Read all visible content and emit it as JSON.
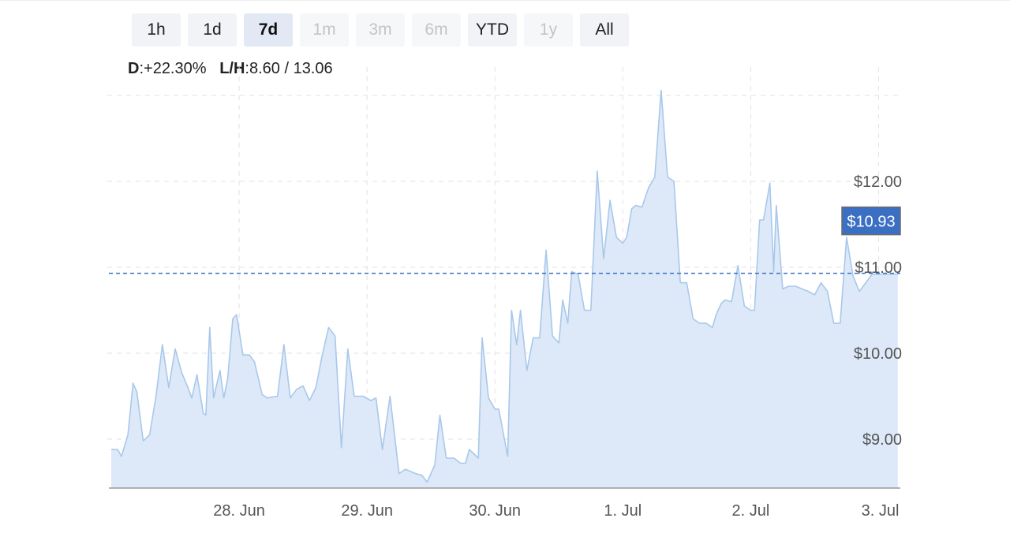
{
  "range_selector": {
    "buttons": [
      {
        "label": "1h",
        "state": "normal"
      },
      {
        "label": "1d",
        "state": "normal"
      },
      {
        "label": "7d",
        "state": "active"
      },
      {
        "label": "1m",
        "state": "disabled"
      },
      {
        "label": "3m",
        "state": "disabled"
      },
      {
        "label": "6m",
        "state": "disabled"
      },
      {
        "label": "YTD",
        "state": "normal"
      },
      {
        "label": "1y",
        "state": "disabled"
      },
      {
        "label": "All",
        "state": "normal"
      }
    ]
  },
  "stats": {
    "d_label": "D",
    "d_value": ":+22.30%",
    "lh_label": "L/H",
    "lh_value": ":8.60 / 13.06"
  },
  "colors": {
    "line": "#a9c8ea",
    "fill": "#dde9f8",
    "current_price": "#3a6fc4",
    "gridline": "#e2e2e2",
    "axis_text": "#555555"
  },
  "chart_data": {
    "type": "area",
    "x_unit": "days since 27 Jun 00:00",
    "xlim": [
      0,
      6.17
    ],
    "ylim": [
      8.62,
      13.2
    ],
    "y_ticks": [
      9,
      10,
      11,
      12
    ],
    "y_tick_labels": [
      "$9.00",
      "$10.00",
      "$11.00",
      "$12.00"
    ],
    "x_ticks": [
      1,
      2,
      3,
      4,
      5,
      6
    ],
    "x_tick_labels": [
      "28. Jun",
      "29. Jun",
      "30. Jun",
      "1. Jul",
      "2. Jul",
      "3. Jul"
    ],
    "grid": true,
    "current_price": 10.93,
    "current_price_label": "$10.93",
    "series": [
      {
        "x": [
          0.0,
          0.05,
          0.08,
          0.13,
          0.17,
          0.2,
          0.25,
          0.3,
          0.35,
          0.4,
          0.45,
          0.5,
          0.55,
          0.6,
          0.63,
          0.67,
          0.72,
          0.74,
          0.77,
          0.8,
          0.85,
          0.88,
          0.91,
          0.95,
          0.98,
          1.03,
          1.08,
          1.12,
          1.18,
          1.22,
          1.3,
          1.35,
          1.4,
          1.45,
          1.5,
          1.55,
          1.6,
          1.65,
          1.7,
          1.75,
          1.8,
          1.85,
          1.9,
          1.97,
          2.03,
          2.07,
          2.12,
          2.18,
          2.25,
          2.3,
          2.38,
          2.43,
          2.47,
          2.53,
          2.57,
          2.62,
          2.68,
          2.73,
          2.77,
          2.8,
          2.87,
          2.9,
          2.95,
          3.0,
          3.03,
          3.1,
          3.13,
          3.17,
          3.2,
          3.25,
          3.3,
          3.35,
          3.4,
          3.45,
          3.5,
          3.53,
          3.57,
          3.6,
          3.65,
          3.7,
          3.75,
          3.8,
          3.85,
          3.9,
          3.95,
          4.0,
          4.03,
          4.07,
          4.1,
          4.15,
          4.2,
          4.25,
          4.3,
          4.35,
          4.4,
          4.45,
          4.5,
          4.55,
          4.6,
          4.65,
          4.7,
          4.73,
          4.77,
          4.8,
          4.85,
          4.9,
          4.95,
          5.0,
          5.03,
          5.07,
          5.1,
          5.15,
          5.18,
          5.2,
          5.25,
          5.3,
          5.35,
          5.4,
          5.45,
          5.5,
          5.55,
          5.6,
          5.65,
          5.7,
          5.75,
          5.8,
          5.85,
          5.9,
          5.95,
          6.0,
          6.05,
          6.1,
          6.15
        ],
        "y": [
          8.88,
          8.88,
          8.8,
          9.05,
          9.65,
          9.55,
          8.98,
          9.05,
          9.5,
          10.1,
          9.6,
          10.05,
          9.78,
          9.6,
          9.48,
          9.75,
          9.3,
          9.28,
          10.3,
          9.48,
          9.8,
          9.48,
          9.7,
          10.4,
          10.45,
          9.98,
          9.98,
          9.9,
          9.52,
          9.48,
          9.5,
          10.1,
          9.48,
          9.58,
          9.62,
          9.45,
          9.6,
          9.98,
          10.3,
          10.2,
          8.9,
          10.05,
          9.5,
          9.5,
          9.45,
          9.48,
          8.88,
          9.5,
          8.6,
          8.65,
          8.6,
          8.58,
          8.5,
          8.7,
          9.28,
          8.78,
          8.78,
          8.72,
          8.72,
          8.88,
          8.78,
          10.18,
          9.48,
          9.35,
          9.35,
          8.8,
          10.5,
          10.1,
          10.5,
          9.8,
          10.18,
          10.18,
          11.2,
          10.2,
          10.12,
          10.62,
          10.35,
          10.95,
          10.92,
          10.5,
          10.5,
          12.12,
          11.1,
          11.78,
          11.35,
          11.28,
          11.35,
          11.68,
          11.72,
          11.7,
          11.92,
          12.05,
          13.06,
          12.05,
          12.0,
          10.82,
          10.82,
          10.4,
          10.35,
          10.35,
          10.3,
          10.45,
          10.58,
          10.62,
          10.6,
          11.02,
          10.55,
          10.5,
          10.5,
          11.55,
          11.55,
          11.98,
          10.95,
          11.72,
          10.75,
          10.78,
          10.78,
          10.75,
          10.72,
          10.68,
          10.82,
          10.72,
          10.35,
          10.35,
          11.35,
          10.9,
          10.72,
          10.82,
          10.92,
          10.92,
          10.92,
          10.92,
          10.92
        ]
      }
    ]
  }
}
